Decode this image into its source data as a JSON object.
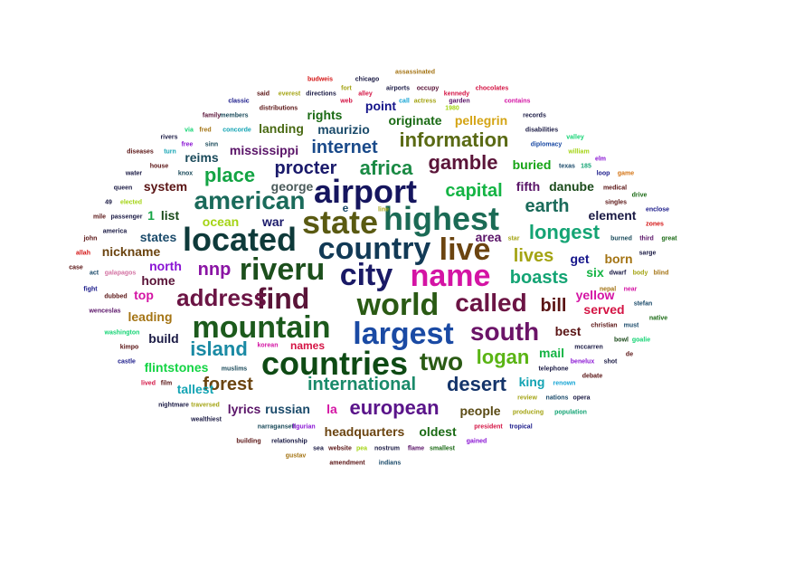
{
  "words": [
    {
      "t": "airport",
      "c": "#15155e"
    },
    {
      "t": "highest",
      "c": "#1b6b55"
    },
    {
      "t": "state",
      "c": "#5a5a12"
    },
    {
      "t": "american",
      "c": "#1a6a5a"
    },
    {
      "t": "located",
      "c": "#0e3a3a"
    },
    {
      "t": "country",
      "c": "#123a56"
    },
    {
      "t": "live",
      "c": "#6b4410"
    },
    {
      "t": "riveru",
      "c": "#1c4f1c"
    },
    {
      "t": "city",
      "c": "#1a1a66"
    },
    {
      "t": "name",
      "c": "#d414a4"
    },
    {
      "t": "find",
      "c": "#5a1438"
    },
    {
      "t": "world",
      "c": "#2a5a14"
    },
    {
      "t": "address",
      "c": "#6b1444"
    },
    {
      "t": "called",
      "c": "#6b1444"
    },
    {
      "t": "mountain",
      "c": "#1c5a1c"
    },
    {
      "t": "largest",
      "c": "#1a4aa4"
    },
    {
      "t": "south",
      "c": "#6b1468"
    },
    {
      "t": "countries",
      "c": "#0e4a14"
    },
    {
      "t": "two",
      "c": "#2a5a14"
    },
    {
      "t": "desert",
      "c": "#14346a"
    },
    {
      "t": "international",
      "c": "#1a8a6a"
    },
    {
      "t": "forest",
      "c": "#6b4410"
    },
    {
      "t": "european",
      "c": "#5a148a"
    },
    {
      "t": "logan",
      "c": "#5ab414"
    },
    {
      "t": "island",
      "c": "#1a8aa4"
    },
    {
      "t": "information",
      "c": "#5a6a14"
    },
    {
      "t": "gamble",
      "c": "#5a1438"
    },
    {
      "t": "procter",
      "c": "#1a1a6b"
    },
    {
      "t": "africa",
      "c": "#1a8a44"
    },
    {
      "t": "place",
      "c": "#14a444"
    },
    {
      "t": "internet",
      "c": "#1a4a8a"
    },
    {
      "t": "capital",
      "c": "#14b444"
    },
    {
      "t": "earth",
      "c": "#1a6a5a"
    },
    {
      "t": "longest",
      "c": "#14a474"
    },
    {
      "t": "lives",
      "c": "#a4a414"
    },
    {
      "t": "boasts",
      "c": "#14a474"
    },
    {
      "t": "bill",
      "c": "#5a1414"
    },
    {
      "t": "nnp",
      "c": "#8a14a4"
    },
    {
      "t": "mississippi",
      "c": "#5a1468"
    },
    {
      "t": "maurizio",
      "c": "#1a4a6a"
    },
    {
      "t": "rights",
      "c": "#1a6a14"
    },
    {
      "t": "point",
      "c": "#14148a"
    },
    {
      "t": "originate",
      "c": "#1a6a14"
    },
    {
      "t": "pellegrin",
      "c": "#d4a414"
    },
    {
      "t": "buried",
      "c": "#14a414"
    },
    {
      "t": "fifth",
      "c": "#5a1468"
    },
    {
      "t": "danube",
      "c": "#1a4a1a"
    },
    {
      "t": "landing",
      "c": "#4a6a14"
    },
    {
      "t": "george",
      "c": "#4a5a5a"
    },
    {
      "t": "reims",
      "c": "#1a4a5a"
    },
    {
      "t": "system",
      "c": "#5a1414"
    },
    {
      "t": "list",
      "c": "#1a4a1a"
    },
    {
      "t": "1",
      "c": "#14a444"
    },
    {
      "t": "ocean",
      "c": "#a4d414"
    },
    {
      "t": "war",
      "c": "#1a1a6b"
    },
    {
      "t": "states",
      "c": "#1a4a6a"
    },
    {
      "t": "nickname",
      "c": "#6b4410"
    },
    {
      "t": "north",
      "c": "#8a14d4"
    },
    {
      "t": "home",
      "c": "#5a1438"
    },
    {
      "t": "top",
      "c": "#d414a4"
    },
    {
      "t": "leading",
      "c": "#a47414"
    },
    {
      "t": "build",
      "c": "#1a1a44"
    },
    {
      "t": "flintstones",
      "c": "#14d444"
    },
    {
      "t": "tallest",
      "c": "#14a4b4"
    },
    {
      "t": "lyrics",
      "c": "#5a1468"
    },
    {
      "t": "russian",
      "c": "#1a4a6a"
    },
    {
      "t": "la",
      "c": "#d414a4"
    },
    {
      "t": "headquarters",
      "c": "#6b4410"
    },
    {
      "t": "oldest",
      "c": "#1a6a14"
    },
    {
      "t": "people",
      "c": "#5a4a14"
    },
    {
      "t": "names",
      "c": "#d41444"
    },
    {
      "t": "area",
      "c": "#5a1468"
    },
    {
      "t": "get",
      "c": "#14148a"
    },
    {
      "t": "born",
      "c": "#a47414"
    },
    {
      "t": "six",
      "c": "#14b444"
    },
    {
      "t": "element",
      "c": "#1a1a44"
    },
    {
      "t": "yellow",
      "c": "#d414a4"
    },
    {
      "t": "served",
      "c": "#d41444"
    },
    {
      "t": "best",
      "c": "#5a1414"
    },
    {
      "t": "mail",
      "c": "#14b444"
    },
    {
      "t": "king",
      "c": "#14a4b4"
    },
    {
      "t": "e",
      "c": "#1a4a6a"
    },
    {
      "t": "budweis",
      "c": "#d41414"
    },
    {
      "t": "chicago",
      "c": "#1a1a44"
    },
    {
      "t": "assassinated",
      "c": "#a47414"
    },
    {
      "t": "fort",
      "c": "#a4a414"
    },
    {
      "t": "airports",
      "c": "#1a1a44"
    },
    {
      "t": "occupy",
      "c": "#5a1438"
    },
    {
      "t": "chocolates",
      "c": "#d41444"
    },
    {
      "t": "said",
      "c": "#5a1414"
    },
    {
      "t": "everest",
      "c": "#a4a414"
    },
    {
      "t": "directions",
      "c": "#1a1a44"
    },
    {
      "t": "alley",
      "c": "#d41444"
    },
    {
      "t": "kennedy",
      "c": "#d41444"
    },
    {
      "t": "classic",
      "c": "#1a1a8a"
    },
    {
      "t": "web",
      "c": "#d41444"
    },
    {
      "t": "call",
      "c": "#14a4d4"
    },
    {
      "t": "actress",
      "c": "#a4a414"
    },
    {
      "t": "garden",
      "c": "#5a1468"
    },
    {
      "t": "contains",
      "c": "#d414a4"
    },
    {
      "t": "distributions",
      "c": "#5a1414"
    },
    {
      "t": "1980",
      "c": "#a4d414"
    },
    {
      "t": "family",
      "c": "#5a1438"
    },
    {
      "t": "members",
      "c": "#1a4a5a"
    },
    {
      "t": "records",
      "c": "#1a1a44"
    },
    {
      "t": "via",
      "c": "#14d474"
    },
    {
      "t": "fred",
      "c": "#a47414"
    },
    {
      "t": "concorde",
      "c": "#14a4b4"
    },
    {
      "t": "disabilities",
      "c": "#1a1a44"
    },
    {
      "t": "rivers",
      "c": "#1a1a44"
    },
    {
      "t": "valley",
      "c": "#14d474"
    },
    {
      "t": "free",
      "c": "#8a14d4"
    },
    {
      "t": "sinn",
      "c": "#1a4a5a"
    },
    {
      "t": "diplomacy",
      "c": "#1a4aa4"
    },
    {
      "t": "diseases",
      "c": "#5a1414"
    },
    {
      "t": "turn",
      "c": "#14a4b4"
    },
    {
      "t": "william",
      "c": "#a4d414"
    },
    {
      "t": "texas",
      "c": "#1a4a6a"
    },
    {
      "t": "185",
      "c": "#14a474"
    },
    {
      "t": "elm",
      "c": "#8a14d4"
    },
    {
      "t": "water",
      "c": "#1a1a44"
    },
    {
      "t": "house",
      "c": "#5a1414"
    },
    {
      "t": "knox",
      "c": "#1a4a5a"
    },
    {
      "t": "loop",
      "c": "#1a1a8a"
    },
    {
      "t": "game",
      "c": "#d47414"
    },
    {
      "t": "queen",
      "c": "#1a1a44"
    },
    {
      "t": "medical",
      "c": "#5a1414"
    },
    {
      "t": "49",
      "c": "#1a1a44"
    },
    {
      "t": "elected",
      "c": "#a4d414"
    },
    {
      "t": "drive",
      "c": "#1a6a14"
    },
    {
      "t": "singles",
      "c": "#5a1414"
    },
    {
      "t": "enclose",
      "c": "#1a1a8a"
    },
    {
      "t": "mile",
      "c": "#5a1414"
    },
    {
      "t": "passenger",
      "c": "#1a1a44"
    },
    {
      "t": "zones",
      "c": "#d41414"
    },
    {
      "t": "america",
      "c": "#1a1a44"
    },
    {
      "t": "line",
      "c": "#a4a414"
    },
    {
      "t": "star",
      "c": "#a4a414"
    },
    {
      "t": "burned",
      "c": "#1a4a5a"
    },
    {
      "t": "third",
      "c": "#5a1468"
    },
    {
      "t": "great",
      "c": "#1a6a14"
    },
    {
      "t": "john",
      "c": "#5a1414"
    },
    {
      "t": "allah",
      "c": "#d41414"
    },
    {
      "t": "sarge",
      "c": "#1a1a44"
    },
    {
      "t": "case",
      "c": "#5a1414"
    },
    {
      "t": "act",
      "c": "#1a4a6a"
    },
    {
      "t": "galapagos",
      "c": "#d474a4"
    },
    {
      "t": "dwarf",
      "c": "#1a1a44"
    },
    {
      "t": "body",
      "c": "#a4a414"
    },
    {
      "t": "blind",
      "c": "#a47414"
    },
    {
      "t": "fight",
      "c": "#1a1a8a"
    },
    {
      "t": "dubbed",
      "c": "#5a1414"
    },
    {
      "t": "nepal",
      "c": "#a47414"
    },
    {
      "t": "near",
      "c": "#d414a4"
    },
    {
      "t": "stefan",
      "c": "#1a4a6a"
    },
    {
      "t": "wenceslas",
      "c": "#5a1468"
    },
    {
      "t": "native",
      "c": "#1a6a14"
    },
    {
      "t": "christian",
      "c": "#5a1414"
    },
    {
      "t": "must",
      "c": "#1a4a6a"
    },
    {
      "t": "washington",
      "c": "#14d474"
    },
    {
      "t": "bowl",
      "c": "#1a4a1a"
    },
    {
      "t": "goalie",
      "c": "#14d474"
    },
    {
      "t": "kimpo",
      "c": "#5a1414"
    },
    {
      "t": "korean",
      "c": "#d414a4"
    },
    {
      "t": "mccarren",
      "c": "#1a1a44"
    },
    {
      "t": "castle",
      "c": "#1a1a8a"
    },
    {
      "t": "de",
      "c": "#5a1414"
    },
    {
      "t": "shot",
      "c": "#1a1a44"
    },
    {
      "t": "benelux",
      "c": "#8a14d4"
    },
    {
      "t": "muslims",
      "c": "#1a4a5a"
    },
    {
      "t": "telephone",
      "c": "#1a1a44"
    },
    {
      "t": "lived",
      "c": "#d41444"
    },
    {
      "t": "film",
      "c": "#5a1414"
    },
    {
      "t": "renown",
      "c": "#14a4d4"
    },
    {
      "t": "debate",
      "c": "#5a1414"
    },
    {
      "t": "review",
      "c": "#a4a414"
    },
    {
      "t": "nations",
      "c": "#1a4a6a"
    },
    {
      "t": "opera",
      "c": "#1a1a44"
    },
    {
      "t": "nightmare",
      "c": "#1a1a44"
    },
    {
      "t": "traversed",
      "c": "#a4a414"
    },
    {
      "t": "producing",
      "c": "#a4a414"
    },
    {
      "t": "population",
      "c": "#14a474"
    },
    {
      "t": "wealthiest",
      "c": "#1a1a44"
    },
    {
      "t": "narragansett",
      "c": "#1a4a5a"
    },
    {
      "t": "ligurian",
      "c": "#8a14d4"
    },
    {
      "t": "president",
      "c": "#d41444"
    },
    {
      "t": "tropical",
      "c": "#1a1a8a"
    },
    {
      "t": "building",
      "c": "#5a1414"
    },
    {
      "t": "relationship",
      "c": "#1a1a44"
    },
    {
      "t": "sea",
      "c": "#1a1a44"
    },
    {
      "t": "website",
      "c": "#5a1414"
    },
    {
      "t": "pea",
      "c": "#a4d414"
    },
    {
      "t": "nostrum",
      "c": "#1a1a44"
    },
    {
      "t": "flame",
      "c": "#5a1468"
    },
    {
      "t": "smallest",
      "c": "#1a6a14"
    },
    {
      "t": "gained",
      "c": "#8a14d4"
    },
    {
      "t": "gustav",
      "c": "#a47414"
    },
    {
      "t": "amendment",
      "c": "#5a1414"
    },
    {
      "t": "indians",
      "c": "#1a4a6a"
    }
  ]
}
